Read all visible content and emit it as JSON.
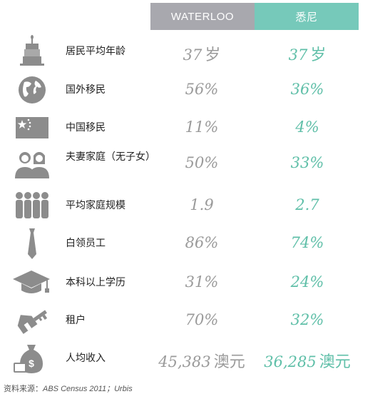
{
  "colors": {
    "waterloo_header": "#a8a8ae",
    "sydney_header": "#76c9ba",
    "waterloo_value": "#9a9a9a",
    "sydney_value": "#5fbfa8",
    "icon": "#8c8c8c"
  },
  "header": {
    "waterloo": "WATERLOO",
    "sydney": "悉尼"
  },
  "rows": [
    {
      "icon": "birthday-cake-icon",
      "label": "居民平均年龄",
      "waterloo": "37",
      "waterloo_unit": "岁",
      "sydney": "37",
      "sydney_unit": "岁"
    },
    {
      "icon": "globe-icon",
      "label": "国外移民",
      "waterloo": "56%",
      "sydney": "36%"
    },
    {
      "icon": "china-flag-icon",
      "label": "中国移民",
      "waterloo": "11%",
      "sydney": "4%"
    },
    {
      "icon": "couple-icon",
      "label": "夫妻家庭（无子女）",
      "waterloo": "50%",
      "sydney": "33%"
    },
    {
      "icon": "family-group-icon",
      "label": "平均家庭规模",
      "waterloo": "1.9",
      "sydney": "2.7"
    },
    {
      "icon": "necktie-icon",
      "label": "白领员工",
      "waterloo": "86%",
      "sydney": "74%"
    },
    {
      "icon": "graduation-cap-icon",
      "label": "本科以上学历",
      "waterloo": "31%",
      "sydney": "24%"
    },
    {
      "icon": "house-key-icon",
      "label": "租户",
      "waterloo": "70%",
      "sydney": "32%"
    },
    {
      "icon": "money-bag-icon",
      "label": "人均收入",
      "waterloo": "45,383",
      "waterloo_unit": "澳元",
      "sydney": "36,285",
      "sydney_unit": "澳元"
    }
  ],
  "source": {
    "prefix": "资料来源：",
    "text": "ABS Census 2011；Urbis"
  }
}
